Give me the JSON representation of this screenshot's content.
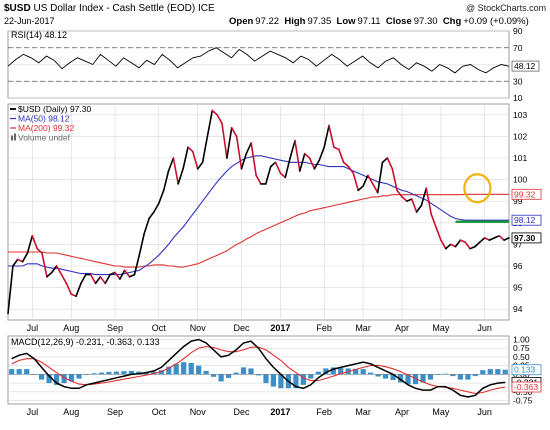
{
  "header": {
    "symbol": "$USD",
    "name": "US Dollar Index - Cash Settle (EOD)",
    "exchange": "ICE",
    "date": "22-Jun-2017",
    "watermark": "@ StockCharts.com",
    "quote": {
      "open_label": "Open",
      "open": "97.22",
      "high_label": "High",
      "high": "97.35",
      "low_label": "Low",
      "low": "97.11",
      "close_label": "Close",
      "close": "97.30",
      "chg_label": "Chg",
      "chg": "+0.09 (+0.09%)"
    }
  },
  "colors": {
    "price": "#000000",
    "price_down": "#c8102e",
    "ma50": "#3030c0",
    "ma200": "#e03030",
    "macd": "#000000",
    "signal": "#e03030",
    "histogram": "#3a8fc8",
    "support_line": "#0a9a2a",
    "circle": "#f2b10f",
    "grid": "#d8d8d8"
  },
  "chart_data": [
    {
      "type": "line",
      "panel": "rsi",
      "label": "RSI(14) 48.12",
      "ylim": [
        10,
        90
      ],
      "y_ticks": [
        90,
        70,
        50,
        30,
        10
      ],
      "reference_lines": [
        70,
        30
      ],
      "current_value_label": "48.12",
      "series": [
        {
          "name": "RSI(14)",
          "values": [
            48,
            56,
            62,
            58,
            52,
            60,
            55,
            45,
            52,
            58,
            54,
            50,
            62,
            55,
            48,
            58,
            52,
            46,
            55,
            50,
            62,
            55,
            46,
            52,
            58,
            60,
            66,
            70,
            64,
            58,
            68,
            62,
            54,
            60,
            66,
            62,
            58,
            52,
            60,
            56,
            48,
            55,
            62,
            56,
            48,
            54,
            60,
            52,
            46,
            54,
            58,
            50,
            44,
            52,
            48,
            42,
            50,
            46,
            40,
            48,
            50,
            44,
            40,
            46,
            50,
            48
          ]
        }
      ]
    },
    {
      "type": "line",
      "panel": "price",
      "legend": [
        {
          "label": "$USD (Daily) 97.30",
          "swatch": "price"
        },
        {
          "label": "MA(50) 98.12",
          "swatch": "ma50"
        },
        {
          "label": "MA(200) 99.32",
          "swatch": "ma200"
        },
        {
          "label": "Volume undef",
          "swatch": "volume"
        }
      ],
      "ylim": [
        93.5,
        103.5
      ],
      "y_ticks": [
        94,
        95,
        96,
        97,
        98,
        99,
        100,
        101,
        102,
        103
      ],
      "x_ticks": [
        "Jul",
        "Aug",
        "Sep",
        "Oct",
        "Nov",
        "Dec",
        "2017",
        "Feb",
        "Mar",
        "Apr",
        "May",
        "Jun"
      ],
      "x_tick_positions": [
        5,
        13,
        22,
        31,
        39,
        48,
        56,
        65,
        73,
        81,
        89,
        98
      ],
      "n_points": 104,
      "value_labels": [
        {
          "text": "99.32",
          "value": 99.32,
          "color": "ma200"
        },
        {
          "text": "98.12",
          "value": 98.12,
          "color": "ma50"
        },
        {
          "text": "97.30",
          "value": 97.3,
          "color": "price"
        }
      ],
      "annotations": {
        "support_line_value": 98.05,
        "support_line_x": [
          92,
          103
        ],
        "circle_center": [
          96.5,
          99.6
        ]
      },
      "series": [
        {
          "name": "$USD (Daily)",
          "values": [
            93.8,
            96.0,
            96.3,
            96.2,
            96.6,
            97.4,
            96.8,
            96.6,
            95.5,
            95.7,
            96.0,
            95.6,
            95.2,
            94.7,
            94.6,
            95.2,
            95.6,
            95.6,
            95.2,
            95.5,
            95.2,
            95.6,
            95.7,
            95.4,
            95.8,
            95.5,
            95.6,
            96.5,
            97.5,
            98.2,
            98.5,
            98.9,
            99.5,
            100.4,
            101.0,
            99.8,
            100.5,
            101.5,
            101.3,
            100.5,
            100.8,
            102.0,
            103.2,
            103.0,
            102.6,
            101.0,
            102.4,
            102.0,
            100.5,
            101.2,
            101.7,
            100.2,
            99.8,
            99.8,
            100.6,
            100.8,
            100.3,
            100.1,
            101.0,
            101.8,
            100.4,
            101.2,
            101.0,
            100.5,
            100.9,
            101.5,
            102.5,
            101.5,
            101.4,
            100.8,
            100.6,
            100.3,
            99.5,
            99.7,
            100.2,
            99.8,
            99.4,
            100.8,
            101.0,
            100.5,
            99.5,
            99.2,
            99.0,
            99.1,
            98.5,
            98.8,
            99.6,
            98.4,
            97.8,
            97.2,
            96.8,
            97.0,
            96.9,
            97.2,
            97.1,
            96.8,
            96.9,
            97.1,
            97.3,
            97.2,
            97.3,
            97.4,
            97.2,
            97.3
          ]
        },
        {
          "name": "MA(50)",
          "values": [
            96.0,
            96.0,
            96.0,
            96.0,
            96.1,
            96.1,
            96.1,
            96.0,
            95.95,
            95.9,
            95.9,
            95.85,
            95.8,
            95.75,
            95.7,
            95.65,
            95.65,
            95.65,
            95.6,
            95.6,
            95.6,
            95.6,
            95.6,
            95.6,
            95.65,
            95.7,
            95.75,
            95.8,
            95.95,
            96.1,
            96.3,
            96.5,
            96.75,
            97.0,
            97.3,
            97.55,
            97.8,
            98.1,
            98.4,
            98.7,
            99.0,
            99.3,
            99.6,
            99.9,
            100.15,
            100.4,
            100.6,
            100.75,
            100.9,
            101.0,
            101.05,
            101.1,
            101.1,
            101.05,
            101.0,
            100.95,
            100.9,
            100.85,
            100.8,
            100.8,
            100.8,
            100.8,
            100.75,
            100.7,
            100.7,
            100.65,
            100.6,
            100.6,
            100.6,
            100.6,
            100.5,
            100.4,
            100.3,
            100.2,
            100.1,
            100.0,
            99.9,
            99.85,
            99.8,
            99.7,
            99.6,
            99.5,
            99.45,
            99.35,
            99.25,
            99.15,
            99.05,
            98.9,
            98.75,
            98.6,
            98.45,
            98.3,
            98.2,
            98.15,
            98.12,
            98.12,
            98.12,
            98.12,
            98.12,
            98.12,
            98.12,
            98.12,
            98.12,
            98.12
          ]
        },
        {
          "name": "MA(200)",
          "values": [
            96.65,
            96.65,
            96.65,
            96.65,
            96.65,
            96.65,
            96.65,
            96.65,
            96.6,
            96.6,
            96.6,
            96.55,
            96.5,
            96.45,
            96.4,
            96.35,
            96.3,
            96.25,
            96.2,
            96.15,
            96.1,
            96.05,
            96.0,
            96.0,
            95.95,
            95.95,
            95.95,
            95.95,
            96.0,
            96.0,
            96.05,
            96.05,
            96.05,
            96.0,
            96.0,
            95.95,
            95.95,
            96.0,
            96.05,
            96.1,
            96.2,
            96.3,
            96.4,
            96.5,
            96.6,
            96.7,
            96.85,
            97.0,
            97.1,
            97.25,
            97.35,
            97.5,
            97.6,
            97.7,
            97.8,
            97.9,
            98.0,
            98.1,
            98.2,
            98.3,
            98.4,
            98.45,
            98.55,
            98.6,
            98.65,
            98.7,
            98.75,
            98.8,
            98.85,
            98.9,
            98.95,
            99.0,
            99.05,
            99.1,
            99.15,
            99.2,
            99.2,
            99.25,
            99.25,
            99.3,
            99.3,
            99.3,
            99.3,
            99.3,
            99.3,
            99.3,
            99.3,
            99.3,
            99.3,
            99.3,
            99.3,
            99.3,
            99.3,
            99.3,
            99.32,
            99.32,
            99.32,
            99.32,
            99.32,
            99.32,
            99.32,
            99.32,
            99.32,
            99.32
          ]
        }
      ]
    },
    {
      "type": "line",
      "panel": "macd",
      "label": "MACD(12,26,9) -0.231, -0.363, 0.133",
      "ylim": [
        -0.85,
        1.1
      ],
      "y_ticks": [
        1.0,
        0.75,
        0.5,
        0.25,
        0.0,
        -0.25,
        -0.5,
        -0.75
      ],
      "value_labels": [
        {
          "text": "0.133",
          "value": 0.133
        },
        {
          "text": "-0.231",
          "value": -0.231
        },
        {
          "text": "-0.363",
          "value": -0.363
        }
      ],
      "series": [
        {
          "name": "MACD",
          "values": [
            0.45,
            0.55,
            0.6,
            0.45,
            0.2,
            -0.05,
            -0.25,
            -0.35,
            -0.4,
            -0.4,
            -0.3,
            -0.25,
            -0.2,
            -0.15,
            -0.1,
            -0.05,
            0.0,
            0.02,
            0.05,
            0.1,
            0.2,
            0.4,
            0.6,
            0.8,
            0.95,
            1.0,
            0.9,
            0.7,
            0.5,
            0.55,
            0.7,
            0.9,
            0.95,
            0.75,
            0.45,
            0.2,
            0.0,
            -0.2,
            -0.35,
            -0.4,
            -0.3,
            -0.1,
            0.05,
            0.15,
            0.2,
            0.25,
            0.3,
            0.35,
            0.3,
            0.2,
            0.1,
            0.0,
            -0.15,
            -0.3,
            -0.4,
            -0.45,
            -0.45,
            -0.35,
            -0.35,
            -0.45,
            -0.6,
            -0.65,
            -0.6,
            -0.4,
            -0.3,
            -0.25,
            -0.23
          ]
        },
        {
          "name": "Signal",
          "values": [
            0.3,
            0.4,
            0.45,
            0.45,
            0.35,
            0.2,
            0.05,
            -0.1,
            -0.2,
            -0.28,
            -0.3,
            -0.28,
            -0.25,
            -0.22,
            -0.18,
            -0.14,
            -0.1,
            -0.06,
            -0.02,
            0.02,
            0.08,
            0.18,
            0.3,
            0.45,
            0.62,
            0.75,
            0.8,
            0.77,
            0.7,
            0.65,
            0.65,
            0.7,
            0.78,
            0.78,
            0.7,
            0.55,
            0.4,
            0.2,
            0.05,
            -0.1,
            -0.18,
            -0.18,
            -0.12,
            -0.05,
            0.02,
            0.08,
            0.14,
            0.2,
            0.25,
            0.26,
            0.22,
            0.16,
            0.08,
            -0.02,
            -0.12,
            -0.22,
            -0.3,
            -0.35,
            -0.37,
            -0.4,
            -0.45,
            -0.5,
            -0.55,
            -0.52,
            -0.45,
            -0.4,
            -0.363
          ]
        },
        {
          "name": "Histogram",
          "values": [
            0.15,
            0.15,
            0.15,
            0.0,
            -0.15,
            -0.25,
            -0.3,
            -0.25,
            -0.2,
            -0.12,
            0.0,
            0.03,
            0.05,
            0.07,
            0.08,
            0.09,
            0.1,
            0.08,
            0.07,
            0.08,
            0.12,
            0.22,
            0.3,
            0.35,
            0.33,
            0.25,
            0.1,
            -0.07,
            -0.2,
            -0.1,
            0.05,
            0.2,
            0.17,
            -0.03,
            -0.25,
            -0.35,
            -0.4,
            -0.4,
            -0.4,
            -0.3,
            -0.12,
            0.08,
            0.17,
            0.2,
            0.18,
            0.17,
            0.16,
            0.15,
            0.05,
            -0.06,
            -0.12,
            -0.16,
            -0.23,
            -0.28,
            -0.28,
            -0.23,
            -0.15,
            0.0,
            0.02,
            -0.05,
            -0.15,
            -0.15,
            -0.05,
            0.12,
            0.15,
            0.15,
            0.133
          ]
        }
      ]
    }
  ]
}
